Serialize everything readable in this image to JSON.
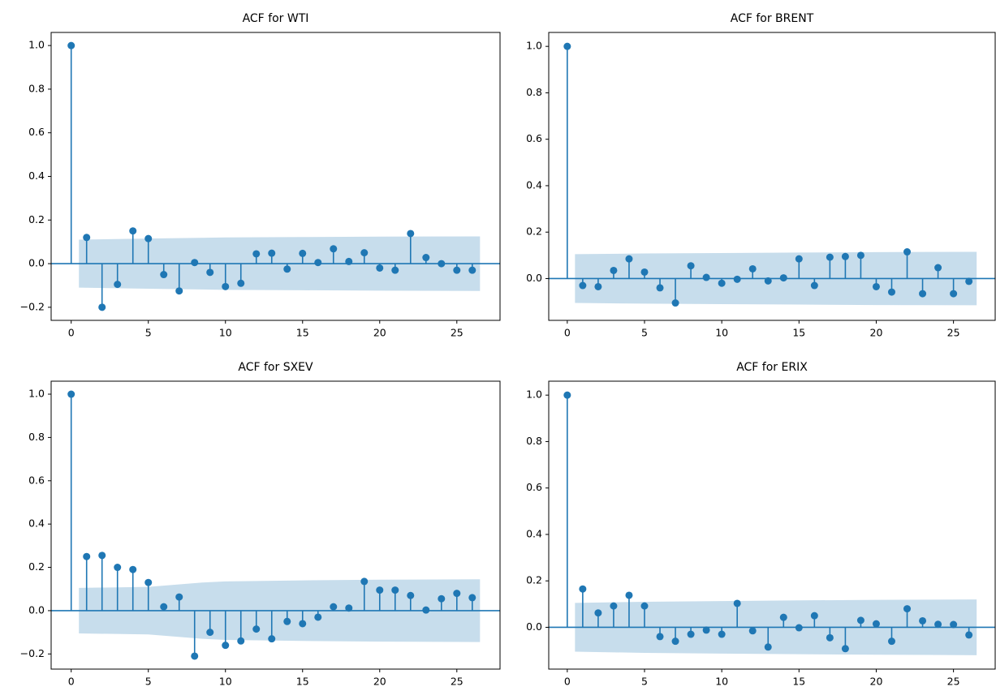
{
  "chart_data": [
    {
      "type": "stem",
      "title": "ACF for WTI",
      "color": "#1f77b4",
      "x": [
        0,
        1,
        2,
        3,
        4,
        5,
        6,
        7,
        8,
        9,
        10,
        11,
        12,
        13,
        14,
        15,
        16,
        17,
        18,
        19,
        20,
        21,
        22,
        23,
        24,
        25,
        26
      ],
      "values": [
        1,
        0.12,
        -0.2,
        -0.095,
        0.15,
        0.115,
        -0.05,
        -0.125,
        0.005,
        -0.04,
        -0.105,
        -0.09,
        0.045,
        0.048,
        -0.025,
        0.047,
        0.005,
        0.068,
        0.01,
        0.05,
        -0.02,
        -0.03,
        0.138,
        0.028,
        0.0,
        -0.03,
        -0.03
      ],
      "band": {
        "x": [
          0.5,
          5,
          10,
          15,
          20,
          26.5
        ],
        "upper": [
          0.11,
          0.115,
          0.12,
          0.122,
          0.124,
          0.125
        ],
        "lower": [
          -0.11,
          -0.115,
          -0.12,
          -0.122,
          -0.124,
          -0.125
        ]
      },
      "xlim": [
        -1.3,
        27.8
      ],
      "ylim": [
        -0.26,
        1.06
      ],
      "xticks": [
        0,
        5,
        10,
        15,
        20,
        25
      ],
      "yticks": [
        {
          "value": -0.2,
          "label": "−0.2"
        },
        {
          "value": 0,
          "label": "0.0"
        },
        0.2,
        0.4,
        0.6,
        0.8,
        {
          "value": 1,
          "label": "1.0"
        }
      ]
    },
    {
      "type": "stem",
      "title": "ACF for BRENT",
      "color": "#1f77b4",
      "x": [
        0,
        1,
        2,
        3,
        4,
        5,
        6,
        7,
        8,
        9,
        10,
        11,
        12,
        13,
        14,
        15,
        16,
        17,
        18,
        19,
        20,
        21,
        22,
        23,
        24,
        25,
        26
      ],
      "values": [
        1,
        -0.03,
        -0.035,
        0.035,
        0.085,
        0.028,
        -0.04,
        -0.105,
        0.055,
        0.005,
        -0.02,
        -0.003,
        0.042,
        -0.01,
        0.003,
        0.085,
        -0.03,
        0.092,
        0.095,
        0.1,
        -0.035,
        -0.058,
        0.115,
        -0.065,
        0.047,
        -0.065,
        -0.012
      ],
      "band": {
        "x": [
          0.5,
          5,
          10,
          15,
          20,
          26.5
        ],
        "upper": [
          0.105,
          0.108,
          0.11,
          0.112,
          0.114,
          0.115
        ],
        "lower": [
          -0.105,
          -0.108,
          -0.11,
          -0.112,
          -0.114,
          -0.115
        ]
      },
      "xlim": [
        -1.2,
        27.7
      ],
      "ylim": [
        -0.18,
        1.06
      ],
      "xticks": [
        0,
        5,
        10,
        15,
        20,
        25
      ],
      "yticks": [
        {
          "value": 0,
          "label": "0.0"
        },
        0.2,
        0.4,
        0.6,
        0.8,
        {
          "value": 1,
          "label": "1.0"
        }
      ]
    },
    {
      "type": "stem",
      "title": "ACF for SXEV",
      "color": "#1f77b4",
      "x": [
        0,
        1,
        2,
        3,
        4,
        5,
        6,
        7,
        8,
        9,
        10,
        11,
        12,
        13,
        14,
        15,
        16,
        17,
        18,
        19,
        20,
        21,
        22,
        23,
        24,
        25,
        26
      ],
      "values": [
        1,
        0.25,
        0.255,
        0.2,
        0.19,
        0.13,
        0.018,
        0.063,
        -0.21,
        -0.1,
        -0.16,
        -0.14,
        -0.085,
        -0.13,
        -0.05,
        -0.06,
        -0.03,
        0.018,
        0.012,
        0.135,
        0.095,
        0.095,
        0.07,
        0.003,
        0.055,
        0.08,
        0.06
      ],
      "band": {
        "x": [
          0.5,
          5,
          8.5,
          10,
          15,
          20,
          26.5
        ],
        "upper": [
          0.105,
          0.11,
          0.13,
          0.135,
          0.14,
          0.143,
          0.145
        ],
        "lower": [
          -0.105,
          -0.11,
          -0.13,
          -0.135,
          -0.14,
          -0.143,
          -0.145
        ]
      },
      "xlim": [
        -1.3,
        27.8
      ],
      "ylim": [
        -0.27,
        1.06
      ],
      "xticks": [
        0,
        5,
        10,
        15,
        20,
        25
      ],
      "yticks": [
        {
          "value": -0.2,
          "label": "−0.2"
        },
        {
          "value": 0,
          "label": "0.0"
        },
        0.2,
        0.4,
        0.6,
        0.8,
        {
          "value": 1,
          "label": "1.0"
        }
      ]
    },
    {
      "type": "stem",
      "title": "ACF for ERIX",
      "color": "#1f77b4",
      "x": [
        0,
        1,
        2,
        3,
        4,
        5,
        6,
        7,
        8,
        9,
        10,
        11,
        12,
        13,
        14,
        15,
        16,
        17,
        18,
        19,
        20,
        21,
        22,
        23,
        24,
        25,
        26
      ],
      "values": [
        1,
        0.165,
        0.062,
        0.092,
        0.138,
        0.092,
        -0.04,
        -0.06,
        -0.03,
        -0.012,
        -0.03,
        0.103,
        -0.015,
        -0.085,
        0.043,
        -0.002,
        0.05,
        -0.045,
        -0.092,
        0.03,
        0.015,
        -0.06,
        0.08,
        0.028,
        0.013,
        0.012,
        -0.033
      ],
      "band": {
        "x": [
          0.5,
          5,
          10,
          15,
          20,
          26.5
        ],
        "upper": [
          0.105,
          0.11,
          0.113,
          0.116,
          0.118,
          0.12
        ],
        "lower": [
          -0.105,
          -0.11,
          -0.113,
          -0.116,
          -0.118,
          -0.12
        ]
      },
      "xlim": [
        -1.2,
        27.7
      ],
      "ylim": [
        -0.18,
        1.06
      ],
      "xticks": [
        0,
        5,
        10,
        15,
        20,
        25
      ],
      "yticks": [
        {
          "value": 0,
          "label": "0.0"
        },
        0.2,
        0.4,
        0.6,
        0.8,
        {
          "value": 1,
          "label": "1.0"
        }
      ]
    }
  ]
}
